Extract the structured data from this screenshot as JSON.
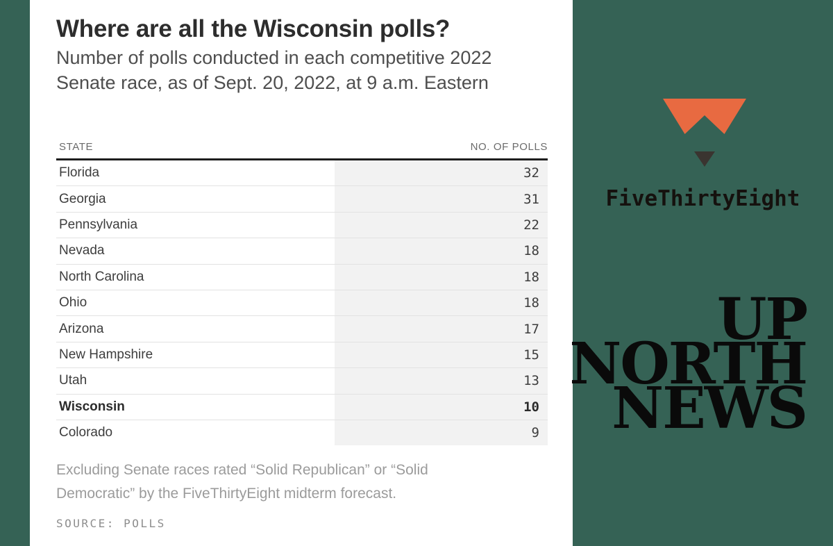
{
  "page": {
    "background_color": "#356255",
    "card_color": "#ffffff"
  },
  "card": {
    "title": "Where are all the Wisconsin polls?",
    "subtitle": "Number of polls conducted in each competitive 2022 Senate race, as of Sept. 20, 2022, at 9 a.m. Eastern",
    "table": {
      "columns": [
        "STATE",
        "NO. OF POLLS"
      ],
      "number_column_bg": "#f2f2f2",
      "rows": [
        {
          "state": "Florida",
          "polls": 32,
          "highlight": false
        },
        {
          "state": "Georgia",
          "polls": 31,
          "highlight": false
        },
        {
          "state": "Pennsylvania",
          "polls": 22,
          "highlight": false
        },
        {
          "state": "Nevada",
          "polls": 18,
          "highlight": false
        },
        {
          "state": "North Carolina",
          "polls": 18,
          "highlight": false
        },
        {
          "state": "Ohio",
          "polls": 18,
          "highlight": false
        },
        {
          "state": "Arizona",
          "polls": 17,
          "highlight": false
        },
        {
          "state": "New Hampshire",
          "polls": 15,
          "highlight": false
        },
        {
          "state": "Utah",
          "polls": 13,
          "highlight": false
        },
        {
          "state": "Wisconsin",
          "polls": 10,
          "highlight": true
        },
        {
          "state": "Colorado",
          "polls": 9,
          "highlight": false
        }
      ]
    },
    "footnote": "Excluding Senate races rated “Solid Republican” or “Solid Democratic” by the FiveThirtyEight midterm forecast.",
    "source": "SOURCE: POLLS"
  },
  "branding": {
    "fivethirtyeight": {
      "wordmark": "FiveThirtyEight",
      "icon_orange": "#E86A41",
      "icon_dark": "#3A3430"
    },
    "outlet": {
      "lines": [
        "UP",
        "NORTH",
        "NEWS"
      ],
      "color": "#0a0a0a"
    }
  },
  "chart_data": {
    "type": "table",
    "title": "Where are all the Wisconsin polls?",
    "subtitle": "Number of polls conducted in each competitive 2022 Senate race, as of Sept. 20, 2022, at 9 a.m. Eastern",
    "columns": [
      "STATE",
      "NO. OF POLLS"
    ],
    "categories": [
      "Florida",
      "Georgia",
      "Pennsylvania",
      "Nevada",
      "North Carolina",
      "Ohio",
      "Arizona",
      "New Hampshire",
      "Utah",
      "Wisconsin",
      "Colorado"
    ],
    "values": [
      32,
      31,
      22,
      18,
      18,
      18,
      17,
      15,
      13,
      10,
      9
    ],
    "highlighted_category": "Wisconsin",
    "footnote": "Excluding Senate races rated “Solid Republican” or “Solid Democratic” by the FiveThirtyEight midterm forecast.",
    "source": "SOURCE: POLLS"
  }
}
